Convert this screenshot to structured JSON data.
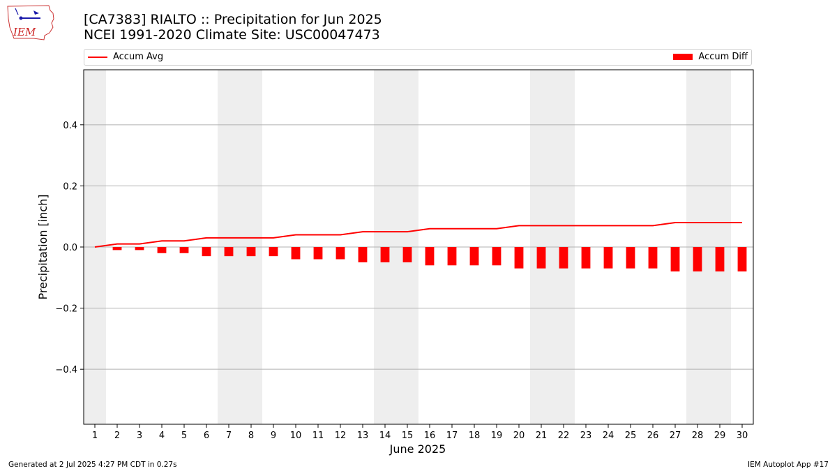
{
  "header": {
    "title_line1": "[CA7383] RIALTO :: Precipitation for Jun 2025",
    "title_line2": "NCEI 1991-2020 Climate Site: USC00047473"
  },
  "logo": {
    "text": "IEM",
    "icon": "iem-iowa-logo-icon"
  },
  "legend": {
    "line_label": "Accum Avg",
    "bar_label": "Accum Diff"
  },
  "footer": {
    "left": "Generated at 2 Jul 2025 4:27 PM CDT in 0.27s",
    "right": "IEM Autoplot App #17"
  },
  "colors": {
    "series": "#ff0000",
    "weekend_shade": "#eeeeee",
    "grid": "#b0b0b0"
  },
  "chart_data": {
    "type": "bar",
    "title": "[CA7383] RIALTO :: Precipitation for Jun 2025",
    "subtitle": "NCEI 1991-2020 Climate Site: USC00047473",
    "xlabel": "June 2025",
    "ylabel": "Precipitation [inch]",
    "x": [
      1,
      2,
      3,
      4,
      5,
      6,
      7,
      8,
      9,
      10,
      11,
      12,
      13,
      14,
      15,
      16,
      17,
      18,
      19,
      20,
      21,
      22,
      23,
      24,
      25,
      26,
      27,
      28,
      29,
      30
    ],
    "ylim": [
      -0.58,
      0.58
    ],
    "yticks": [
      -0.4,
      -0.2,
      0.0,
      0.2,
      0.4
    ],
    "ytick_labels": [
      "−0.4",
      "−0.2",
      "0.0",
      "0.2",
      "0.4"
    ],
    "grid": "y",
    "legend_position": "top",
    "shaded_days": [
      1,
      7,
      8,
      14,
      15,
      21,
      22,
      28,
      29
    ],
    "series": [
      {
        "name": "Accum Avg",
        "kind": "line",
        "values": [
          0.0,
          0.01,
          0.01,
          0.02,
          0.02,
          0.03,
          0.03,
          0.03,
          0.03,
          0.04,
          0.04,
          0.04,
          0.05,
          0.05,
          0.05,
          0.06,
          0.06,
          0.06,
          0.06,
          0.07,
          0.07,
          0.07,
          0.07,
          0.07,
          0.07,
          0.07,
          0.08,
          0.08,
          0.08,
          0.08
        ]
      },
      {
        "name": "Accum Diff",
        "kind": "bar",
        "values": [
          0.0,
          -0.01,
          -0.01,
          -0.02,
          -0.02,
          -0.03,
          -0.03,
          -0.03,
          -0.03,
          -0.04,
          -0.04,
          -0.04,
          -0.05,
          -0.05,
          -0.05,
          -0.06,
          -0.06,
          -0.06,
          -0.06,
          -0.07,
          -0.07,
          -0.07,
          -0.07,
          -0.07,
          -0.07,
          -0.07,
          -0.08,
          -0.08,
          -0.08,
          -0.08
        ]
      }
    ]
  }
}
